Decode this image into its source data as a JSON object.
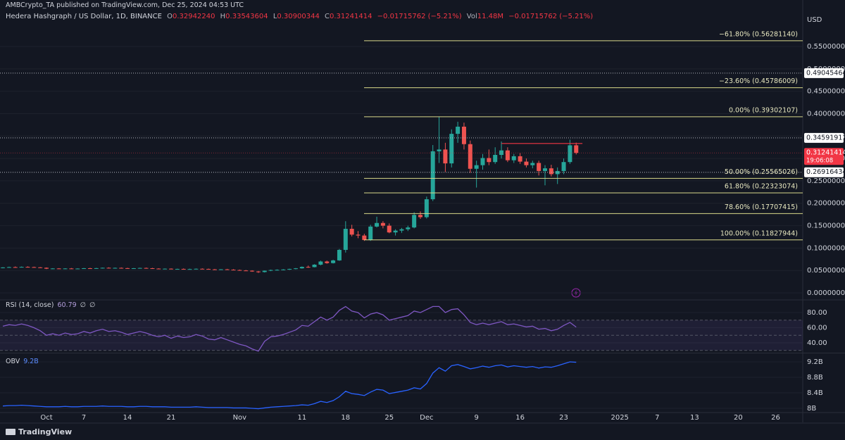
{
  "chart_data": [
    {
      "type": "candlestick",
      "publisher_line": "AMBCrypto_TA published on TradingView.com, Dec 25, 2024 04:53 UTC",
      "title": "Hedera Hashgraph / US Dollar, 1D, BINANCE",
      "legend": [
        {
          "label": "O",
          "value": "0.32942240"
        },
        {
          "label": "H",
          "value": "0.33543604"
        },
        {
          "label": "L",
          "value": "0.30900344"
        },
        {
          "label": "C",
          "value": "0.31241414"
        }
      ],
      "change": "−0.01715762 (−5.21%)",
      "volume_label": "Vol",
      "volume": "11.48M",
      "volume_change": "−0.01715762 (−5.21%)",
      "currency": "USD",
      "footer": "TradingView",
      "up_color": "#26a69a",
      "down_color": "#ef5350",
      "fib_color": "#d9d98a",
      "categories": [
        null,
        null,
        null,
        null,
        null,
        null,
        null,
        "Oct",
        null,
        null,
        null,
        null,
        null,
        "7",
        null,
        null,
        null,
        null,
        null,
        null,
        "14",
        null,
        null,
        null,
        null,
        null,
        null,
        "21",
        null,
        null,
        null,
        null,
        null,
        null,
        null,
        null,
        null,
        null,
        "Nov",
        null,
        null,
        null,
        null,
        null,
        null,
        null,
        null,
        null,
        "11",
        null,
        null,
        null,
        null,
        null,
        null,
        "18",
        null,
        null,
        null,
        null,
        null,
        null,
        "25",
        null,
        null,
        null,
        null,
        null,
        "Dec",
        null,
        null,
        null,
        null,
        null,
        null,
        null,
        "9",
        null,
        null,
        null,
        null,
        null,
        null,
        "16",
        null,
        null,
        null,
        null,
        null,
        null,
        "23",
        null,
        null,
        null,
        null,
        null,
        null,
        null,
        null,
        "2025",
        null,
        null,
        null,
        null,
        null,
        "7",
        null,
        null,
        null,
        null,
        null,
        "13",
        null,
        null,
        null,
        null,
        null,
        null,
        "20",
        null,
        null,
        null,
        null,
        null,
        "26",
        null,
        null,
        null,
        null
      ],
      "ohlc": [
        [
          0.0555,
          0.0575,
          0.0548,
          0.0568
        ],
        [
          0.0568,
          0.0585,
          0.056,
          0.0575
        ],
        [
          0.0575,
          0.059,
          0.0565,
          0.0572
        ],
        [
          0.0572,
          0.0588,
          0.0566,
          0.058
        ],
        [
          0.058,
          0.0592,
          0.057,
          0.0576
        ],
        [
          0.0576,
          0.0585,
          0.0565,
          0.057
        ],
        [
          0.057,
          0.0578,
          0.0555,
          0.056
        ],
        [
          0.056,
          0.0568,
          0.053,
          0.054
        ],
        [
          0.054,
          0.0552,
          0.053,
          0.0545
        ],
        [
          0.0545,
          0.0552,
          0.0532,
          0.0538
        ],
        [
          0.0538,
          0.055,
          0.053,
          0.0545
        ],
        [
          0.0545,
          0.0555,
          0.0535,
          0.054
        ],
        [
          0.054,
          0.0548,
          0.0532,
          0.0543
        ],
        [
          0.0543,
          0.0556,
          0.0536,
          0.055
        ],
        [
          0.055,
          0.056,
          0.054,
          0.0545
        ],
        [
          0.0545,
          0.0558,
          0.0538,
          0.0552
        ],
        [
          0.0552,
          0.0565,
          0.0545,
          0.056
        ],
        [
          0.056,
          0.057,
          0.0548,
          0.0555
        ],
        [
          0.0555,
          0.0565,
          0.0545,
          0.0558
        ],
        [
          0.0558,
          0.0568,
          0.055,
          0.0552
        ],
        [
          0.0552,
          0.056,
          0.054,
          0.0545
        ],
        [
          0.0545,
          0.0555,
          0.0535,
          0.055
        ],
        [
          0.055,
          0.0562,
          0.0542,
          0.0556
        ],
        [
          0.0556,
          0.0565,
          0.0545,
          0.055
        ],
        [
          0.055,
          0.0558,
          0.0538,
          0.0542
        ],
        [
          0.0542,
          0.055,
          0.053,
          0.0536
        ],
        [
          0.0536,
          0.0546,
          0.0528,
          0.054
        ],
        [
          0.054,
          0.0548,
          0.0525,
          0.053
        ],
        [
          0.053,
          0.054,
          0.0522,
          0.0535
        ],
        [
          0.0535,
          0.0545,
          0.0525,
          0.0528
        ],
        [
          0.0528,
          0.054,
          0.052,
          0.0532
        ],
        [
          0.0532,
          0.0545,
          0.0525,
          0.0538
        ],
        [
          0.0538,
          0.0548,
          0.0528,
          0.0534
        ],
        [
          0.0534,
          0.0542,
          0.052,
          0.0525
        ],
        [
          0.0525,
          0.0535,
          0.0515,
          0.052
        ],
        [
          0.052,
          0.0532,
          0.0512,
          0.0526
        ],
        [
          0.0526,
          0.0536,
          0.0515,
          0.0518
        ],
        [
          0.0518,
          0.0528,
          0.0505,
          0.051
        ],
        [
          0.051,
          0.052,
          0.0495,
          0.05
        ],
        [
          0.05,
          0.0512,
          0.0488,
          0.0495
        ],
        [
          0.0495,
          0.0505,
          0.047,
          0.0478
        ],
        [
          0.0478,
          0.049,
          0.0445,
          0.0465
        ],
        [
          0.0465,
          0.05,
          0.0455,
          0.0495
        ],
        [
          0.0495,
          0.052,
          0.0485,
          0.051
        ],
        [
          0.051,
          0.0525,
          0.05,
          0.0515
        ],
        [
          0.0515,
          0.053,
          0.0505,
          0.0522
        ],
        [
          0.0522,
          0.054,
          0.0512,
          0.0535
        ],
        [
          0.0535,
          0.0555,
          0.0525,
          0.0548
        ],
        [
          0.0548,
          0.059,
          0.054,
          0.058
        ],
        [
          0.058,
          0.061,
          0.056,
          0.0575
        ],
        [
          0.0575,
          0.064,
          0.057,
          0.063
        ],
        [
          0.063,
          0.072,
          0.0615,
          0.07
        ],
        [
          0.07,
          0.072,
          0.065,
          0.0665
        ],
        [
          0.0665,
          0.074,
          0.0655,
          0.0725
        ],
        [
          0.0725,
          0.098,
          0.0715,
          0.096
        ],
        [
          0.096,
          0.16,
          0.09,
          0.143
        ],
        [
          0.143,
          0.152,
          0.126,
          0.13
        ],
        [
          0.13,
          0.138,
          0.122,
          0.128
        ],
        [
          0.128,
          0.132,
          0.116,
          0.118
        ],
        [
          0.118,
          0.152,
          0.116,
          0.148
        ],
        [
          0.148,
          0.17,
          0.146,
          0.156
        ],
        [
          0.156,
          0.16,
          0.144,
          0.15
        ],
        [
          0.15,
          0.155,
          0.133,
          0.135
        ],
        [
          0.135,
          0.142,
          0.128,
          0.139
        ],
        [
          0.139,
          0.145,
          0.134,
          0.142
        ],
        [
          0.142,
          0.15,
          0.138,
          0.146
        ],
        [
          0.146,
          0.18,
          0.144,
          0.174
        ],
        [
          0.174,
          0.182,
          0.165,
          0.169
        ],
        [
          0.169,
          0.215,
          0.166,
          0.209
        ],
        [
          0.209,
          0.33,
          0.205,
          0.316
        ],
        [
          0.316,
          0.393,
          0.29,
          0.32
        ],
        [
          0.32,
          0.335,
          0.27,
          0.289
        ],
        [
          0.289,
          0.365,
          0.28,
          0.355
        ],
        [
          0.355,
          0.382,
          0.335,
          0.371
        ],
        [
          0.371,
          0.38,
          0.32,
          0.332
        ],
        [
          0.332,
          0.34,
          0.268,
          0.277
        ],
        [
          0.277,
          0.295,
          0.235,
          0.285
        ],
        [
          0.285,
          0.31,
          0.275,
          0.301
        ],
        [
          0.301,
          0.32,
          0.285,
          0.292
        ],
        [
          0.292,
          0.325,
          0.288,
          0.308
        ],
        [
          0.308,
          0.338,
          0.3,
          0.318
        ],
        [
          0.318,
          0.325,
          0.292,
          0.296
        ],
        [
          0.296,
          0.31,
          0.29,
          0.305
        ],
        [
          0.305,
          0.312,
          0.288,
          0.293
        ],
        [
          0.293,
          0.3,
          0.28,
          0.285
        ],
        [
          0.285,
          0.295,
          0.278,
          0.29
        ],
        [
          0.29,
          0.295,
          0.262,
          0.272
        ],
        [
          0.272,
          0.285,
          0.24,
          0.278
        ],
        [
          0.278,
          0.286,
          0.26,
          0.265
        ],
        [
          0.265,
          0.28,
          0.243,
          0.272
        ],
        [
          0.272,
          0.3,
          0.265,
          0.292
        ],
        [
          0.292,
          0.342,
          0.288,
          0.3294
        ],
        [
          0.3294224,
          0.33543604,
          0.30900344,
          0.31241414
        ],
        null,
        null,
        null,
        null,
        null,
        null,
        null,
        null,
        null,
        null,
        null,
        null,
        null,
        null,
        null,
        null,
        null,
        null,
        null,
        null,
        null,
        null,
        null,
        null,
        null,
        null,
        null,
        null,
        null,
        null,
        null,
        null,
        null,
        null,
        null,
        null
      ],
      "ylim": [
        -0.0141,
        0.6223
      ],
      "yticks": [
        {
          "value": 0,
          "label": "0.00000000"
        },
        {
          "value": 0.05,
          "label": "0.05000000"
        },
        {
          "value": 0.1,
          "label": "0.10000000"
        },
        {
          "value": 0.15,
          "label": "0.15000000"
        },
        {
          "value": 0.2,
          "label": "0.20000000"
        },
        {
          "value": 0.25,
          "label": "0.25000000"
        },
        {
          "value": 0.3,
          "label": "0.30000000"
        },
        {
          "value": 0.35,
          "label": "0.35000000"
        },
        {
          "value": 0.4,
          "label": "0.40000000"
        },
        {
          "value": 0.45,
          "label": "0.45000000"
        },
        {
          "value": 0.5,
          "label": "0.50000000"
        },
        {
          "value": 0.55,
          "label": "0.55000000"
        }
      ],
      "fib_levels": [
        {
          "value": 0.5628114,
          "label": "−61.80% (0.56281140)"
        },
        {
          "value": 0.45786009,
          "label": "−23.60% (0.45786009)"
        },
        {
          "value": 0.39302107,
          "label": "0.00% (0.39302107)"
        },
        {
          "value": 0.25565026,
          "label": "50.00% (0.25565026)"
        },
        {
          "value": 0.22323074,
          "label": "61.80% (0.22323074)"
        },
        {
          "value": 0.17707415,
          "label": "78.60% (0.17707415)"
        },
        {
          "value": 0.11827944,
          "label": "100.00% (0.11827944)"
        }
      ],
      "price_lines": [
        {
          "value": 0.49045464,
          "label": "0.49045464"
        },
        {
          "value": 0.34591911,
          "label": "0.34591911"
        },
        {
          "value": 0.26916434,
          "label": "0.26916434"
        }
      ],
      "last_price": {
        "value": 0.31241414,
        "label": "0.31241414",
        "countdown": "19:06:08"
      },
      "resistance": 0.3335
    },
    {
      "type": "line",
      "name": "RSI (14, close)",
      "value_label": "60.79",
      "extras": [
        "∅",
        "∅"
      ],
      "color": "#7e57c2",
      "values": [
        62,
        64,
        63,
        65,
        63,
        60,
        56,
        50,
        52,
        50,
        53,
        51,
        52,
        55,
        53,
        56,
        58,
        55,
        56,
        54,
        51,
        53,
        55,
        53,
        50,
        48,
        50,
        46,
        49,
        47,
        48,
        51,
        49,
        45,
        44,
        47,
        44,
        41,
        38,
        36,
        32,
        29,
        42,
        48,
        49,
        51,
        54,
        57,
        63,
        62,
        68,
        74,
        70,
        74,
        83,
        88,
        82,
        80,
        73,
        78,
        80,
        77,
        70,
        72,
        74,
        76,
        82,
        80,
        84,
        88,
        88,
        80,
        84,
        85,
        77,
        67,
        64,
        66,
        64,
        66,
        68,
        64,
        65,
        63,
        61,
        62,
        58,
        59,
        56,
        58,
        63,
        67,
        60.79,
        null,
        null,
        null,
        null,
        null,
        null,
        null,
        null,
        null,
        null,
        null,
        null,
        null,
        null,
        null,
        null,
        null,
        null,
        null,
        null,
        null,
        null,
        null,
        null,
        null,
        null,
        null,
        null,
        null,
        null,
        null,
        null,
        null,
        null,
        null,
        null
      ],
      "ylim": [
        27.9,
        95.8
      ],
      "yticks": [
        {
          "value": 80,
          "label": "80.00"
        },
        {
          "value": 60,
          "label": "60.00"
        },
        {
          "value": 40,
          "label": "40.00"
        }
      ],
      "levels": [
        70,
        50,
        30
      ]
    },
    {
      "type": "line",
      "name": "OBV",
      "value_label": "9.2B",
      "color": "#2962ff",
      "values": [
        8060000000.0,
        8070000000.0,
        8070000000.0,
        8080000000.0,
        8070000000.0,
        8060000000.0,
        8050000000.0,
        8040000000.0,
        8040000000.0,
        8040000000.0,
        8050000000.0,
        8040000000.0,
        8040000000.0,
        8050000000.0,
        8050000000.0,
        8050000000.0,
        8060000000.0,
        8050000000.0,
        8050000000.0,
        8050000000.0,
        8040000000.0,
        8040000000.0,
        8050000000.0,
        8050000000.0,
        8040000000.0,
        8040000000.0,
        8040000000.0,
        8030000000.0,
        8030000000.0,
        8030000000.0,
        8030000000.0,
        8040000000.0,
        8030000000.0,
        8020000000.0,
        8020000000.0,
        8020000000.0,
        8020000000.0,
        8010000000.0,
        8010000000.0,
        8010000000.0,
        8000000000.0,
        7990000000.0,
        8010000000.0,
        8030000000.0,
        8040000000.0,
        8050000000.0,
        8060000000.0,
        8070000000.0,
        8090000000.0,
        8080000000.0,
        8120000000.0,
        8180000000.0,
        8150000000.0,
        8200000000.0,
        8300000000.0,
        8440000000.0,
        8380000000.0,
        8360000000.0,
        8330000000.0,
        8420000000.0,
        8490000000.0,
        8470000000.0,
        8380000000.0,
        8410000000.0,
        8440000000.0,
        8470000000.0,
        8530000000.0,
        8500000000.0,
        8640000000.0,
        8910000000.0,
        9050000000.0,
        8960000000.0,
        9100000000.0,
        9130000000.0,
        9080000000.0,
        9020000000.0,
        9050000000.0,
        9090000000.0,
        9060000000.0,
        9100000000.0,
        9120000000.0,
        9070000000.0,
        9100000000.0,
        9080000000.0,
        9060000000.0,
        9080000000.0,
        9040000000.0,
        9070000000.0,
        9060000000.0,
        9100000000.0,
        9150000000.0,
        9200000000.0,
        9190000000.0,
        null,
        null,
        null,
        null,
        null,
        null,
        null,
        null,
        null,
        null,
        null,
        null,
        null,
        null,
        null,
        null,
        null,
        null,
        null,
        null,
        null,
        null,
        null,
        null,
        null,
        null,
        null,
        null,
        null,
        null,
        null,
        null,
        null,
        null,
        null,
        null
      ],
      "ylim": [
        7909000000.0,
        9400000000.0
      ],
      "yticks": [
        {
          "value": 9200000000.0,
          "label": "9.2B"
        },
        {
          "value": 8800000000.0,
          "label": "8.8B"
        },
        {
          "value": 8400000000.0,
          "label": "8.4B"
        },
        {
          "value": 8000000000.0,
          "label": "8B"
        }
      ]
    }
  ]
}
